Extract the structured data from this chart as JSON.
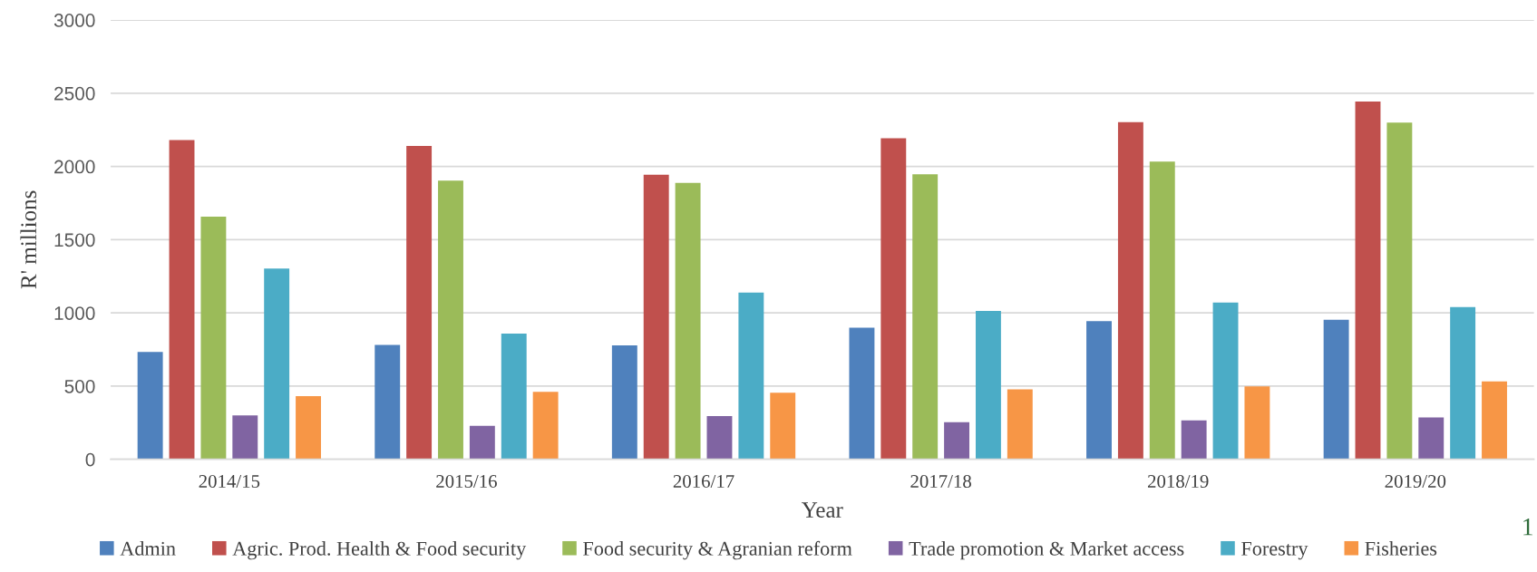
{
  "chart_data": {
    "type": "bar",
    "xlabel": "Year",
    "ylabel": "R' millions",
    "categories": [
      "2014/15",
      "2015/16",
      "2016/17",
      "2017/18",
      "2018/19",
      "2019/20"
    ],
    "series": [
      {
        "name": "Admin",
        "color": "#4f81bd",
        "values": [
          734,
          781,
          778,
          899,
          943,
          953
        ]
      },
      {
        "name": "Agric. Prod. Health & Food security",
        "color": "#c0504d",
        "values": [
          2180,
          2140,
          1943,
          2193,
          2303,
          2443
        ]
      },
      {
        "name": "Food security & Agranian reform",
        "color": "#9bbb59",
        "values": [
          1657,
          1903,
          1887,
          1947,
          2033,
          2300
        ]
      },
      {
        "name": "Trade promotion & Market access",
        "color": "#8064a2",
        "values": [
          300,
          229,
          296,
          253,
          266,
          286
        ]
      },
      {
        "name": "Forestry",
        "color": "#4bacc6",
        "values": [
          1303,
          859,
          1138,
          1013,
          1071,
          1040
        ]
      },
      {
        "name": "Fisheries",
        "color": "#f79646",
        "values": [
          431,
          461,
          455,
          478,
          498,
          532
        ]
      }
    ],
    "ylim": [
      0,
      3000
    ],
    "yticks": [
      0,
      500,
      1000,
      1500,
      2000,
      2500,
      3000
    ],
    "grid": "y",
    "legend": "bottom",
    "annotations": [
      "1"
    ]
  }
}
